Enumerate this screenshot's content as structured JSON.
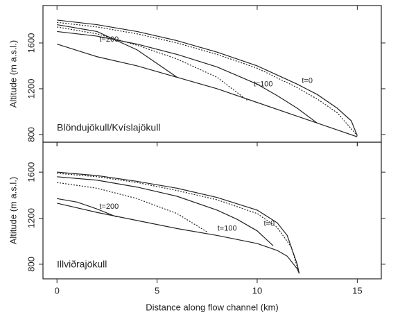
{
  "chart_data": [
    {
      "type": "line",
      "panel_label": "Blöndujökull/Kvíslajökull",
      "ylabel": "Altitude (m a.s.l.)",
      "xlim": [
        -0.7,
        16.2
      ],
      "ylim": [
        733,
        1927
      ],
      "xticks": [
        0,
        5,
        10,
        15
      ],
      "yticks": [
        800,
        1200,
        1600
      ],
      "series": [
        {
          "color": "#222",
          "dashed": false,
          "x": [
            0,
            2,
            4,
            6,
            8,
            10,
            12,
            13,
            14,
            15
          ],
          "values": [
            1590,
            1480,
            1400,
            1300,
            1200,
            1080,
            960,
            900,
            840,
            780
          ]
        },
        {
          "color": "#222",
          "dashed": false,
          "x": [
            0,
            2,
            4,
            6,
            8,
            10,
            12,
            13,
            14,
            14.7,
            15
          ],
          "values": [
            1800,
            1760,
            1700,
            1620,
            1520,
            1400,
            1240,
            1150,
            1030,
            920,
            790
          ]
        },
        {
          "color": "#222",
          "dashed": true,
          "x": [
            0,
            2,
            4,
            6,
            8,
            10,
            12,
            13,
            14,
            15
          ],
          "values": [
            1780,
            1740,
            1680,
            1600,
            1500,
            1380,
            1210,
            1110,
            990,
            790
          ]
        },
        {
          "color": "#222",
          "dashed": false,
          "x": [
            0,
            2,
            4,
            6,
            8,
            10,
            11,
            12,
            13
          ],
          "values": [
            1700,
            1660,
            1590,
            1500,
            1390,
            1240,
            1140,
            1030,
            900
          ]
        },
        {
          "color": "#222",
          "dashed": true,
          "x": [
            0,
            2,
            4,
            6,
            8,
            9.5
          ],
          "values": [
            1740,
            1680,
            1580,
            1460,
            1300,
            1100
          ]
        },
        {
          "color": "#222",
          "dashed": false,
          "x": [
            0,
            2,
            4,
            5,
            6
          ],
          "values": [
            1760,
            1700,
            1540,
            1420,
            1300
          ]
        }
      ],
      "annotations": [
        {
          "text": "t=200",
          "x": 2.6,
          "y": 1630
        },
        {
          "text": "t=100",
          "x": 10.3,
          "y": 1240
        },
        {
          "text": "t=0",
          "x": 12.5,
          "y": 1270
        }
      ]
    },
    {
      "type": "line",
      "panel_label": "Illviðrajökull",
      "ylabel": "Altitude (m a.s.l.)",
      "xlabel": "Distance along flow channel (km)",
      "xlim": [
        -0.7,
        16.2
      ],
      "ylim": [
        673,
        1860
      ],
      "xticks": [
        0,
        5,
        10,
        15
      ],
      "yticks": [
        800,
        1200,
        1600
      ],
      "series": [
        {
          "color": "#222",
          "dashed": false,
          "x": [
            0,
            2,
            4,
            6,
            8,
            10,
            11,
            11.5,
            12,
            12.1
          ],
          "values": [
            1330,
            1250,
            1180,
            1110,
            1050,
            980,
            920,
            870,
            760,
            720
          ]
        },
        {
          "color": "#222",
          "dashed": false,
          "x": [
            0,
            2,
            4,
            6,
            8,
            10,
            11,
            11.5,
            12,
            12.1
          ],
          "values": [
            1600,
            1570,
            1520,
            1460,
            1380,
            1270,
            1160,
            1050,
            800,
            720
          ]
        },
        {
          "color": "#222",
          "dashed": true,
          "x": [
            0,
            2,
            4,
            6,
            8,
            10,
            11,
            11.7,
            12.1
          ],
          "values": [
            1590,
            1560,
            1510,
            1440,
            1360,
            1240,
            1120,
            950,
            720
          ]
        },
        {
          "color": "#222",
          "dashed": false,
          "x": [
            0,
            2,
            4,
            6,
            8,
            9,
            10,
            10.8
          ],
          "values": [
            1560,
            1530,
            1470,
            1390,
            1270,
            1190,
            1090,
            960
          ]
        },
        {
          "color": "#222",
          "dashed": true,
          "x": [
            0,
            2,
            4,
            6,
            7.5
          ],
          "values": [
            1510,
            1460,
            1370,
            1240,
            1080
          ]
        },
        {
          "color": "#222",
          "dashed": false,
          "x": [
            0,
            1,
            2,
            3
          ],
          "values": [
            1370,
            1340,
            1280,
            1210
          ]
        }
      ],
      "annotations": [
        {
          "text": "t=200",
          "x": 2.6,
          "y": 1300
        },
        {
          "text": "t=100",
          "x": 8.5,
          "y": 1110
        },
        {
          "text": "t=0",
          "x": 10.6,
          "y": 1150
        }
      ]
    }
  ]
}
